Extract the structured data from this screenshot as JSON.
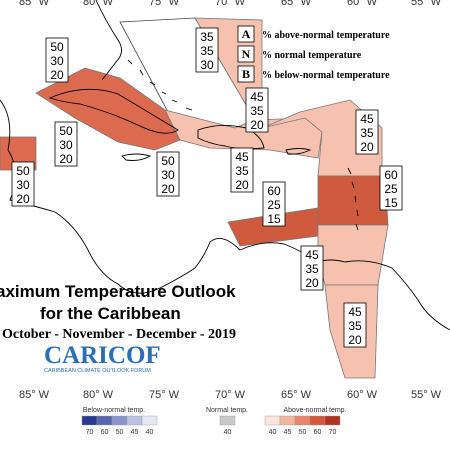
{
  "map": {
    "lon_labels": [
      "85° W",
      "80° W",
      "75° W",
      "70° W",
      "65° W",
      "60° W",
      "55° W"
    ],
    "legend": {
      "items": [
        {
          "key": "A",
          "text": "% above-normal temperature"
        },
        {
          "key": "N",
          "text": "% normal temperature"
        },
        {
          "key": "B",
          "text": "% below-normal temperature"
        }
      ]
    },
    "title_line1": "aximum Temperature Outlook",
    "title_line2": "for the Caribbean",
    "period": "October - November - December - 2019",
    "logo": {
      "name": "CARICOF",
      "subtitle": "CARIBBEAN CLIMATE OUTLOOK FORUM"
    },
    "colorbar": {
      "below_label": "Below-normal temp.",
      "normal_label": "Normal temp.",
      "above_label": "Above-normal temp.",
      "below_ticks": [
        "70",
        "60",
        "50",
        "45",
        "40"
      ],
      "normal_ticks": [
        "40"
      ],
      "above_ticks": [
        "40",
        "45",
        "50",
        "60",
        "70"
      ],
      "below_colors": [
        "#2b3990",
        "#5766b0",
        "#8a94cc",
        "#bcc2e2",
        "#e4e7f4"
      ],
      "normal_color": "#c8c8c8",
      "above_colors": [
        "#fbe4da",
        "#f5b6a0",
        "#ea8668",
        "#d4583c",
        "#b2331f"
      ]
    },
    "probabilities": [
      {
        "region": "bahamas",
        "A": "35",
        "N": "35",
        "B": "30"
      },
      {
        "region": "cuba",
        "A": "50",
        "N": "30",
        "B": "20"
      },
      {
        "region": "belize",
        "A": "50",
        "N": "30",
        "B": "20"
      },
      {
        "region": "jamaica",
        "A": "50",
        "N": "30",
        "B": "20"
      },
      {
        "region": "cayman",
        "A": "50",
        "N": "30",
        "B": "20"
      },
      {
        "region": "turks-caicos",
        "A": "45",
        "N": "35",
        "B": "20"
      },
      {
        "region": "hispaniola",
        "A": "45",
        "N": "35",
        "B": "20"
      },
      {
        "region": "northern-leewards",
        "A": "45",
        "N": "35",
        "B": "20"
      },
      {
        "region": "puerto-rico-sea",
        "A": "60",
        "N": "25",
        "B": "15"
      },
      {
        "region": "eastern-caribbean",
        "A": "60",
        "N": "25",
        "B": "15"
      },
      {
        "region": "southern-caribbean",
        "A": "45",
        "N": "35",
        "B": "20"
      },
      {
        "region": "guianas",
        "A": "45",
        "N": "35",
        "B": "20"
      }
    ]
  }
}
